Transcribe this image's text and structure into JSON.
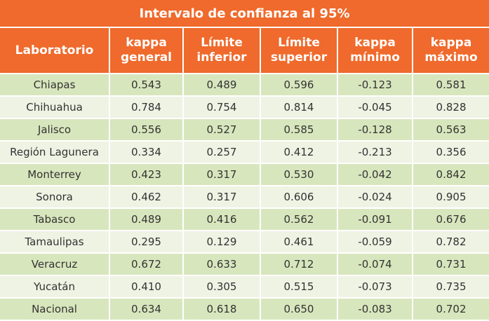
{
  "title": "Intervalo de confianza al 95%",
  "headers": [
    {
      "line1": "Laboratorio",
      "line2": ""
    },
    {
      "line1": "kappa",
      "line2": "general"
    },
    {
      "line1": "Límite",
      "line2": "inferior"
    },
    {
      "line1": "Límite",
      "line2": "superior"
    },
    {
      "line1": "kappa",
      "line2": "mínimo"
    },
    {
      "line1": "kappa",
      "line2": "máximo"
    }
  ],
  "rows": [
    [
      "Chiapas",
      "0.543",
      "0.489",
      "0.596",
      "-0.123",
      "0.581"
    ],
    [
      "Chihuahua",
      "0.784",
      "0.754",
      "0.814",
      "-0.045",
      "0.828"
    ],
    [
      "Jalisco",
      "0.556",
      "0.527",
      "0.585",
      "-0.128",
      "0.563"
    ],
    [
      "Región Lagunera",
      "0.334",
      "0.257",
      "0.412",
      "-0.213",
      "0.356"
    ],
    [
      "Monterrey",
      "0.423",
      "0.317",
      "0.530",
      "-0.042",
      "0.842"
    ],
    [
      "Sonora",
      "0.462",
      "0.317",
      "0.606",
      "-0.024",
      "0.905"
    ],
    [
      "Tabasco",
      "0.489",
      "0.416",
      "0.562",
      "-0.091",
      "0.676"
    ],
    [
      "Tamaulipas",
      "0.295",
      "0.129",
      "0.461",
      "-0.059",
      "0.782"
    ],
    [
      "Veracruz",
      "0.672",
      "0.633",
      "0.712",
      "-0.074",
      "0.731"
    ],
    [
      "Yucatán",
      "0.410",
      "0.305",
      "0.515",
      "-0.073",
      "0.735"
    ],
    [
      "Nacional",
      "0.634",
      "0.618",
      "0.650",
      "-0.083",
      "0.702"
    ]
  ],
  "colors": {
    "header_bg": "#ef6a2c",
    "row_odd_bg": "#d8e6bd",
    "row_even_bg": "#eef3e4"
  }
}
